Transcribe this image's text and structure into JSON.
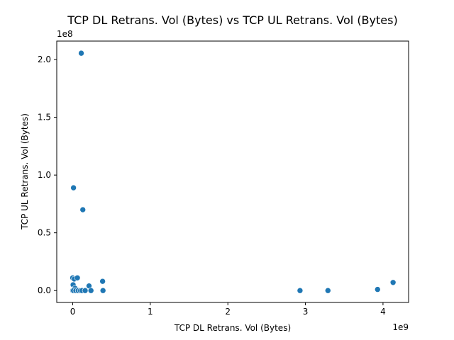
{
  "chart_data": {
    "type": "scatter",
    "title": "TCP DL Retrans. Vol (Bytes) vs TCP UL Retrans. Vol (Bytes)",
    "xlabel": "TCP DL Retrans. Vol (Bytes)",
    "ylabel": "TCP UL Retrans. Vol (Bytes)",
    "x_offset_label": "1e9",
    "y_offset_label": "1e8",
    "x_scale": 1000000000,
    "y_scale": 100000000,
    "xlim": [
      -0.206,
      4.33
    ],
    "ylim": [
      -0.103,
      2.16
    ],
    "x_ticks": [
      0,
      1,
      2,
      3,
      4
    ],
    "x_tick_labels": [
      "0",
      "1",
      "2",
      "3",
      "4"
    ],
    "y_ticks": [
      0.0,
      0.5,
      1.0,
      1.5,
      2.0
    ],
    "y_tick_labels": [
      "0.0",
      "0.5",
      "1.0",
      "1.5",
      "2.0"
    ],
    "grid": false,
    "marker_color": "#1f77b4",
    "points": [
      {
        "x": 0.11,
        "y": 2.055
      },
      {
        "x": 0.01,
        "y": 0.89
      },
      {
        "x": 0.13,
        "y": 0.7
      },
      {
        "x": 0.0,
        "y": 0.11
      },
      {
        "x": 0.02,
        "y": 0.1
      },
      {
        "x": 0.06,
        "y": 0.11
      },
      {
        "x": 0.385,
        "y": 0.08
      },
      {
        "x": 0.005,
        "y": 0.05
      },
      {
        "x": 0.21,
        "y": 0.04
      },
      {
        "x": 0.03,
        "y": 0.02
      },
      {
        "x": 0.0,
        "y": 0.0
      },
      {
        "x": 0.01,
        "y": 0.0
      },
      {
        "x": 0.04,
        "y": 0.0
      },
      {
        "x": 0.07,
        "y": 0.0
      },
      {
        "x": 0.1,
        "y": 0.0
      },
      {
        "x": 0.12,
        "y": 0.0
      },
      {
        "x": 0.16,
        "y": 0.0
      },
      {
        "x": 0.235,
        "y": 0.0
      },
      {
        "x": 0.39,
        "y": 0.0
      },
      {
        "x": 2.93,
        "y": 0.0
      },
      {
        "x": 3.29,
        "y": 0.0
      },
      {
        "x": 3.93,
        "y": 0.01
      },
      {
        "x": 4.13,
        "y": 0.07
      }
    ]
  }
}
